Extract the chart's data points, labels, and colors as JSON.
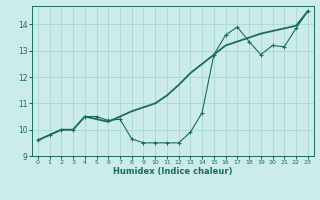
{
  "xlabel": "Humidex (Indice chaleur)",
  "ylabel": "",
  "bg_color": "#ccecea",
  "grid_color": "#aad8d4",
  "line_color": "#1a6b5e",
  "xlim": [
    -0.5,
    23.5
  ],
  "ylim": [
    9.0,
    14.7
  ],
  "yticks": [
    9,
    10,
    11,
    12,
    13,
    14
  ],
  "xticks": [
    0,
    1,
    2,
    3,
    4,
    5,
    6,
    7,
    8,
    9,
    10,
    11,
    12,
    13,
    14,
    15,
    16,
    17,
    18,
    19,
    20,
    21,
    22,
    23
  ],
  "series1_x": [
    0,
    1,
    2,
    3,
    4,
    5,
    6,
    7,
    8,
    9,
    10,
    11,
    12,
    13,
    14,
    15,
    16,
    17,
    18,
    19,
    20,
    21,
    22,
    23
  ],
  "series1_y": [
    9.6,
    9.8,
    10.0,
    10.0,
    10.5,
    10.5,
    10.35,
    10.4,
    9.65,
    9.5,
    9.5,
    9.5,
    9.5,
    9.9,
    10.65,
    12.85,
    13.6,
    13.9,
    13.35,
    12.85,
    13.2,
    13.15,
    13.85,
    14.5
  ],
  "series2_x": [
    0,
    1,
    2,
    3,
    4,
    5,
    6,
    7,
    8,
    9,
    10,
    11,
    12,
    13,
    14,
    15,
    16,
    17,
    18,
    19,
    20,
    21,
    22,
    23
  ],
  "series2_y": [
    9.6,
    9.8,
    10.0,
    10.0,
    10.5,
    10.4,
    10.3,
    10.5,
    10.7,
    10.85,
    11.0,
    11.3,
    11.7,
    12.15,
    12.5,
    12.85,
    13.2,
    13.35,
    13.5,
    13.65,
    13.75,
    13.85,
    13.95,
    14.5
  ]
}
